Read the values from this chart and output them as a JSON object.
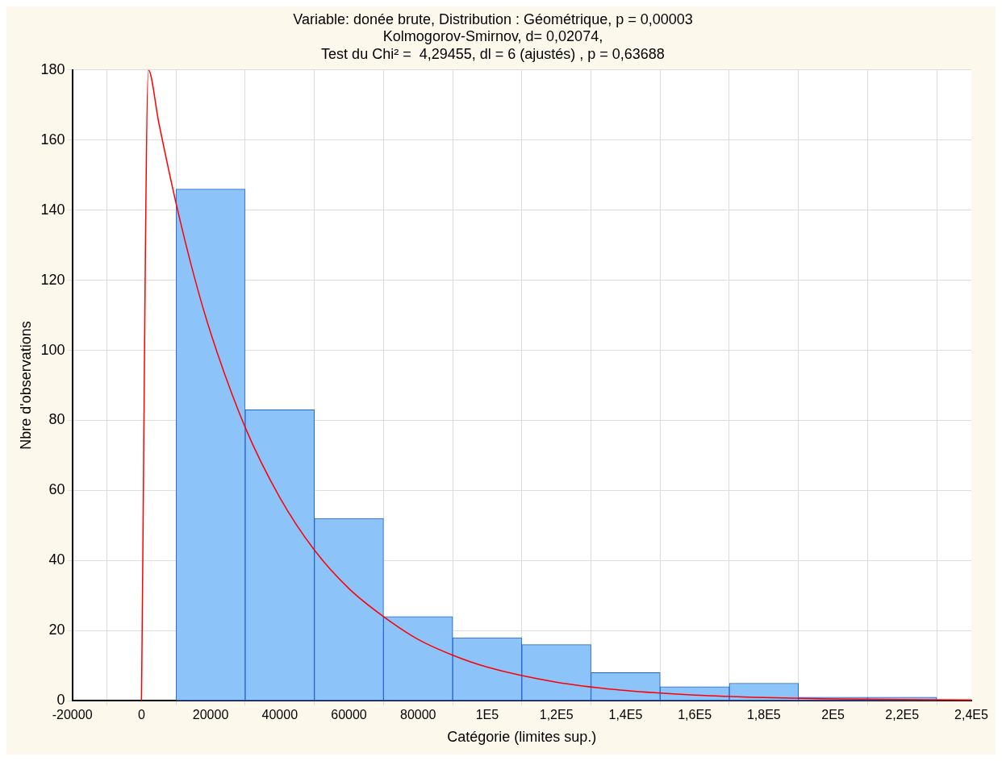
{
  "chart_data": {
    "type": "histogram",
    "title": "Variable: donée brute, Distribution : Géométrique, p = 0,00003",
    "subtitle": "Kolmogorov-Smirnov, d= 0,02074,\nTest du Chi² =  4,29455, dl = 6 (ajustés) , p = 0,63688",
    "xlabel": "Catégorie (limites sup.)",
    "ylabel": "Nbre d'observations",
    "bins": [
      10000,
      30000,
      50000,
      70000,
      90000,
      110000,
      130000,
      150000,
      170000,
      190000,
      210000,
      230000
    ],
    "values": [
      146,
      83,
      52,
      24,
      18,
      16,
      8,
      4,
      5,
      1,
      1
    ],
    "color": "#8cc3f9",
    "series": [
      {
        "type": "line",
        "color": "#ff0000",
        "x": [
          0,
          2000,
          5000,
          10000,
          15000,
          20000,
          30000,
          40000,
          50000,
          60000,
          70000,
          80000,
          90000,
          100000,
          120000,
          140000,
          160000,
          180000,
          200000,
          240000
        ],
        "values": [
          0,
          180,
          165,
          142,
          122,
          105,
          78,
          58,
          43,
          32,
          24,
          17.5,
          13,
          9.6,
          5.3,
          2.9,
          1.6,
          0.9,
          0.5,
          0.2
        ]
      }
    ],
    "xlim": [
      -20000,
      240000
    ],
    "xticks": [
      -20000,
      0,
      20000,
      40000,
      60000,
      80000,
      {
        "value": 100000,
        "label": "1E5"
      },
      {
        "value": 120000,
        "label": "1,2E5"
      },
      {
        "value": 140000,
        "label": "1,4E5"
      },
      {
        "value": 160000,
        "label": "1,6E5"
      },
      {
        "value": 180000,
        "label": "1,8E5"
      },
      {
        "value": 200000,
        "label": "2E5"
      },
      {
        "value": 220000,
        "label": "2,2E5"
      },
      {
        "value": 240000,
        "label": "2,4E5"
      }
    ],
    "ylim": [
      0,
      180
    ],
    "yticks": [
      0,
      20,
      40,
      60,
      80,
      100,
      120,
      140,
      160,
      180
    ],
    "grid": true,
    "legend": false,
    "marker": "none",
    "line_style": "solid"
  }
}
